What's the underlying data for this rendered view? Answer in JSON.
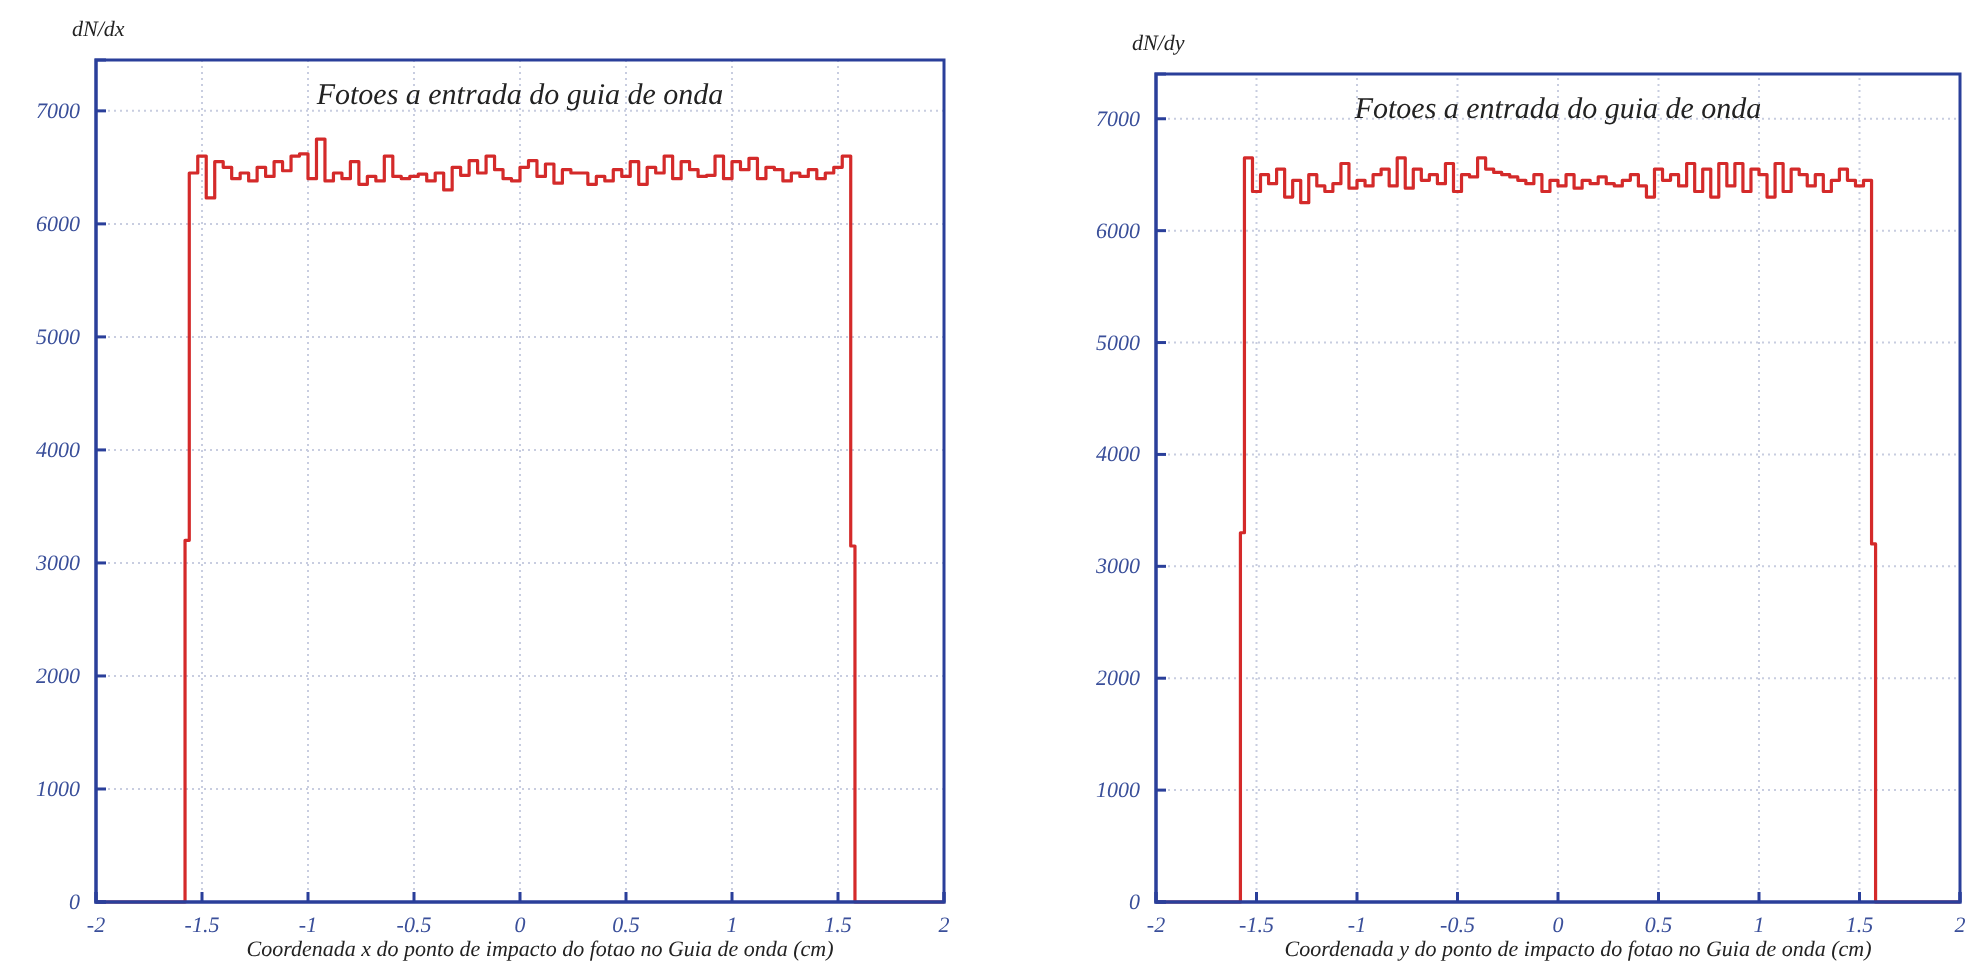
{
  "chart_data": [
    {
      "type": "histogram",
      "title": "Fotoes  a entrada do guia de onda",
      "xlabel": "Coordenada x do ponto de impacto do fotao no Guia de onda (cm)",
      "ylabel": "dN/dx",
      "color": "#d42a2a",
      "grid": true,
      "xlim": [
        -2,
        2
      ],
      "xticks": [
        -2,
        -1.5,
        -1,
        -0.5,
        0,
        0.5,
        1,
        1.5,
        2
      ],
      "ylim": [
        0,
        7450
      ],
      "yticks": [
        0,
        1000,
        2000,
        3000,
        4000,
        5000,
        6000,
        7000
      ],
      "bins": [
        -2,
        -1.58,
        -1.56,
        -1.52,
        -1.48,
        -1.44,
        -1.4,
        -1.36,
        -1.32,
        -1.28,
        -1.24,
        -1.2,
        -1.16,
        -1.12,
        -1.08,
        -1.04,
        -1,
        -0.96,
        -0.92,
        -0.88,
        -0.84,
        -0.8,
        -0.76,
        -0.72,
        -0.68,
        -0.64,
        -0.6,
        -0.56,
        -0.52,
        -0.48,
        -0.44,
        -0.4,
        -0.36,
        -0.32,
        -0.28,
        -0.24,
        -0.2,
        -0.16,
        -0.12,
        -0.08,
        -0.04,
        0,
        0.04,
        0.08,
        0.12,
        0.16,
        0.2,
        0.24,
        0.28,
        0.32,
        0.36,
        0.4,
        0.44,
        0.48,
        0.52,
        0.56,
        0.6,
        0.64,
        0.68,
        0.72,
        0.76,
        0.8,
        0.84,
        0.88,
        0.92,
        0.96,
        1,
        1.04,
        1.08,
        1.12,
        1.16,
        1.2,
        1.24,
        1.28,
        1.32,
        1.36,
        1.4,
        1.44,
        1.48,
        1.52,
        1.56,
        1.58,
        2
      ],
      "values": [
        0,
        3200,
        6450,
        6600,
        6230,
        6550,
        6500,
        6400,
        6450,
        6380,
        6500,
        6420,
        6550,
        6470,
        6600,
        6620,
        6400,
        6750,
        6380,
        6450,
        6400,
        6550,
        6350,
        6420,
        6380,
        6600,
        6420,
        6400,
        6420,
        6440,
        6380,
        6450,
        6300,
        6500,
        6430,
        6560,
        6450,
        6600,
        6480,
        6400,
        6380,
        6500,
        6560,
        6420,
        6530,
        6360,
        6480,
        6450,
        6450,
        6350,
        6420,
        6380,
        6480,
        6420,
        6550,
        6350,
        6500,
        6450,
        6600,
        6400,
        6550,
        6480,
        6420,
        6430,
        6600,
        6400,
        6550,
        6480,
        6580,
        6400,
        6500,
        6480,
        6380,
        6450,
        6420,
        6480,
        6400,
        6450,
        6500,
        6600,
        3150,
        0
      ]
    },
    {
      "type": "histogram",
      "title": "Fotoes  a entrada do guia de onda",
      "xlabel": "Coordenada y do ponto de impacto do fotao no Guia de onda (cm)",
      "ylabel": "dN/dy",
      "color": "#d42a2a",
      "grid": true,
      "xlim": [
        -2,
        2
      ],
      "xticks": [
        -2,
        -1.5,
        -1,
        -0.5,
        0,
        0.5,
        1,
        1.5,
        2
      ],
      "ylim": [
        0,
        7400
      ],
      "yticks": [
        0,
        1000,
        2000,
        3000,
        4000,
        5000,
        6000,
        7000
      ],
      "bins": [
        -2,
        -1.58,
        -1.56,
        -1.52,
        -1.48,
        -1.44,
        -1.4,
        -1.36,
        -1.32,
        -1.28,
        -1.24,
        -1.2,
        -1.16,
        -1.12,
        -1.08,
        -1.04,
        -1,
        -0.96,
        -0.92,
        -0.88,
        -0.84,
        -0.8,
        -0.76,
        -0.72,
        -0.68,
        -0.64,
        -0.6,
        -0.56,
        -0.52,
        -0.48,
        -0.44,
        -0.4,
        -0.36,
        -0.32,
        -0.28,
        -0.24,
        -0.2,
        -0.16,
        -0.12,
        -0.08,
        -0.04,
        0,
        0.04,
        0.08,
        0.12,
        0.16,
        0.2,
        0.24,
        0.28,
        0.32,
        0.36,
        0.4,
        0.44,
        0.48,
        0.52,
        0.56,
        0.6,
        0.64,
        0.68,
        0.72,
        0.76,
        0.8,
        0.84,
        0.88,
        0.92,
        0.96,
        1,
        1.04,
        1.08,
        1.12,
        1.16,
        1.2,
        1.24,
        1.28,
        1.32,
        1.36,
        1.4,
        1.44,
        1.48,
        1.52,
        1.56,
        1.58,
        2
      ],
      "values": [
        0,
        3300,
        6650,
        6350,
        6500,
        6420,
        6550,
        6300,
        6450,
        6250,
        6500,
        6400,
        6350,
        6420,
        6600,
        6380,
        6450,
        6400,
        6500,
        6550,
        6400,
        6650,
        6380,
        6550,
        6450,
        6500,
        6420,
        6600,
        6350,
        6500,
        6480,
        6650,
        6550,
        6520,
        6500,
        6480,
        6450,
        6420,
        6500,
        6350,
        6450,
        6400,
        6500,
        6380,
        6450,
        6420,
        6480,
        6420,
        6400,
        6450,
        6500,
        6400,
        6300,
        6550,
        6450,
        6500,
        6400,
        6600,
        6350,
        6550,
        6300,
        6600,
        6400,
        6600,
        6350,
        6550,
        6500,
        6300,
        6600,
        6350,
        6550,
        6500,
        6400,
        6500,
        6350,
        6450,
        6550,
        6450,
        6400,
        6450,
        3200,
        0
      ]
    }
  ]
}
